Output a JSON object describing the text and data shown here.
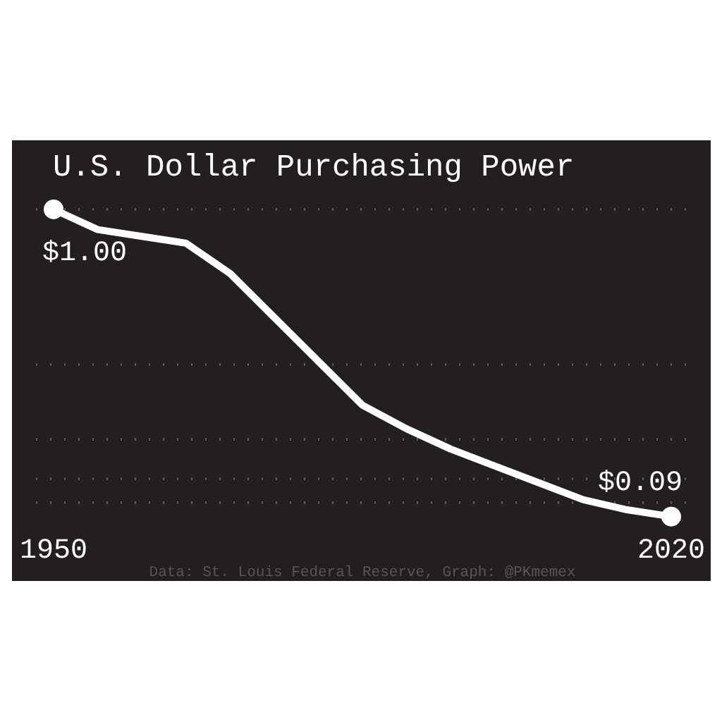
{
  "chart_data": {
    "type": "line",
    "title": "U.S. Dollar Purchasing Power",
    "x": [
      1950,
      1955,
      1960,
      1965,
      1970,
      1975,
      1980,
      1985,
      1990,
      1995,
      2000,
      2005,
      2010,
      2015,
      2020
    ],
    "series": [
      {
        "color": "#ffffff",
        "values": [
          1.0,
          0.94,
          0.92,
          0.9,
          0.81,
          0.68,
          0.55,
          0.42,
          0.35,
          0.29,
          0.24,
          0.19,
          0.14,
          0.11,
          0.09
        ],
        "value_labels": [
          "$1.00",
          null,
          null,
          null,
          null,
          null,
          null,
          null,
          null,
          null,
          null,
          null,
          null,
          null,
          "$0.09"
        ]
      }
    ],
    "xlim": [
      1948,
      2022
    ],
    "xticks": [
      1950,
      2020
    ],
    "ylim": [
      0.06,
      1.05
    ],
    "yticks": [
      {
        "value": 1.0,
        "label": null
      },
      {
        "value": 0.54,
        "label": null
      },
      {
        "value": 0.32,
        "label": null
      },
      {
        "value": 0.2,
        "label": null
      },
      {
        "value": 0.13,
        "label": null
      }
    ],
    "tick_labels": "x",
    "grid": "y",
    "line_style": "solid",
    "marker": "none",
    "annotations": [
      "Data: St. Louis Federal Reserve, Graph: @PKmemex"
    ]
  }
}
